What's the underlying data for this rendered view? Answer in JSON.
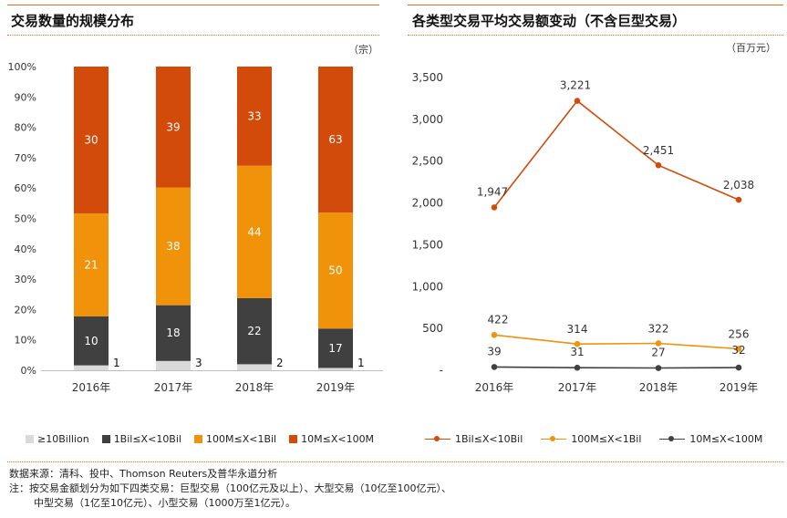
{
  "left_chart": {
    "title": "交易数量的规模分布",
    "unit": "（宗）",
    "chart_data": {
      "type": "bar",
      "stacked": true,
      "percent": true,
      "categories": [
        "2016年",
        "2017年",
        "2018年",
        "2019年"
      ],
      "y_ticks": [
        "0%",
        "10%",
        "20%",
        "30%",
        "40%",
        "50%",
        "60%",
        "70%",
        "80%",
        "90%",
        "100%"
      ],
      "series": [
        {
          "name": "≥10Billion",
          "color": "#d9d9d9",
          "values": [
            1,
            3,
            2,
            1
          ],
          "labels": [
            "1",
            "3",
            "2",
            "1"
          ]
        },
        {
          "name": "1Bil≤X<10Bil",
          "color": "#404040",
          "values": [
            10,
            18,
            22,
            17
          ],
          "labels": [
            "10",
            "18",
            "22",
            "17"
          ]
        },
        {
          "name": "100M≤X<1Bil",
          "color": "#f0920a",
          "values": [
            21,
            38,
            44,
            50
          ],
          "labels": [
            "21",
            "38",
            "44",
            "50"
          ]
        },
        {
          "name": "10M≤X<100M",
          "color": "#d24b0b",
          "values": [
            30,
            39,
            33,
            63
          ],
          "labels": [
            "30",
            "39",
            "33",
            "63"
          ]
        }
      ]
    }
  },
  "right_chart": {
    "title": "各类型交易平均交易额变动（不含巨型交易）",
    "unit": "（百万元）",
    "chart_data": {
      "type": "line",
      "categories": [
        "2016年",
        "2017年",
        "2018年",
        "2019年"
      ],
      "ylim": [
        0,
        3500
      ],
      "y_ticks": [
        {
          "value": 0,
          "label": "-"
        },
        {
          "value": 500,
          "label": "500"
        },
        {
          "value": 1000,
          "label": "1,000"
        },
        {
          "value": 1500,
          "label": "1,500"
        },
        {
          "value": 2000,
          "label": "2,000"
        },
        {
          "value": 2500,
          "label": "2,500"
        },
        {
          "value": 3000,
          "label": "3,000"
        },
        {
          "value": 3500,
          "label": "3,500"
        }
      ],
      "series": [
        {
          "name": "1Bil≤X<10Bil",
          "color": "#d24b0b",
          "values": [
            1947,
            3221,
            2451,
            2038
          ],
          "labels": [
            "1,947",
            "3,221",
            "2,451",
            "2,038"
          ]
        },
        {
          "name": "100M≤X<1Bil",
          "color": "#f0920a",
          "values": [
            422,
            314,
            322,
            256
          ],
          "labels": [
            "422",
            "314",
            "322",
            "256"
          ]
        },
        {
          "name": "10M≤X<100M",
          "color": "#404040",
          "values": [
            39,
            31,
            27,
            32
          ],
          "labels": [
            "39",
            "31",
            "27",
            "32"
          ]
        }
      ]
    }
  },
  "footer": {
    "source": "数据来源：清科、投中、Thomson Reuters及普华永道分析",
    "note_line1": "注：按交易金额划分为如下四类交易：巨型交易（100亿元及以上）、大型交易（10亿至100亿元）、",
    "note_line2": "中型交易（1亿至10亿元）、小型交易（1000万至1亿元）。"
  }
}
